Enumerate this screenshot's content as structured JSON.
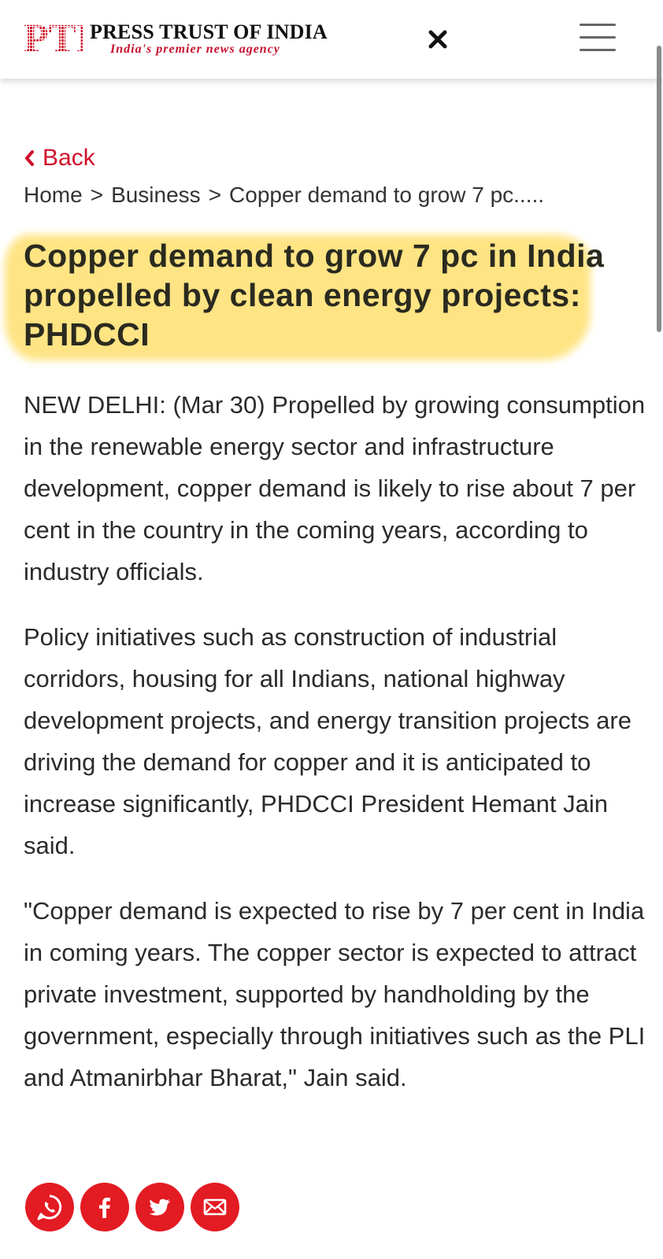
{
  "header": {
    "logo_text": "PTI",
    "brand_name": "PRESS TRUST OF INDIA",
    "tagline": "India's premier news agency",
    "close_icon": "close-icon",
    "menu_icon": "hamburger-menu-icon"
  },
  "nav": {
    "back_label": "Back",
    "breadcrumb": {
      "home": "Home",
      "separator": ">",
      "section": "Business",
      "current": "Copper demand to grow 7 pc....."
    }
  },
  "article": {
    "headline": "Copper demand to grow 7 pc in India propelled by clean energy projects: PHDCCI",
    "paragraphs": [
      "NEW DELHI: (Mar 30) Propelled by growing consumption in the renewable energy sector and infrastructure development, copper demand is likely to rise about 7 per cent in the country in the coming years, according to industry officials.",
      "Policy initiatives such as construction of industrial corridors, housing for all Indians, national highway development projects, and energy transition projects are driving the demand for copper and it is anticipated to increase significantly, PHDCCI President Hemant Jain said.",
      "\"Copper demand is expected to rise by 7 per cent in India in coming years. The copper sector is expected to attract private investment, supported by handholding by the government, especially through initiatives such as the PLI and Atmanirbhar Bharat,\" Jain said."
    ]
  },
  "share": {
    "icons": [
      "whatsapp-icon",
      "facebook-icon",
      "twitter-icon",
      "email-icon"
    ]
  },
  "colors": {
    "brand_red": "#d0112b",
    "highlight_yellow": "#ffe27a",
    "text": "#2b2b2b"
  }
}
